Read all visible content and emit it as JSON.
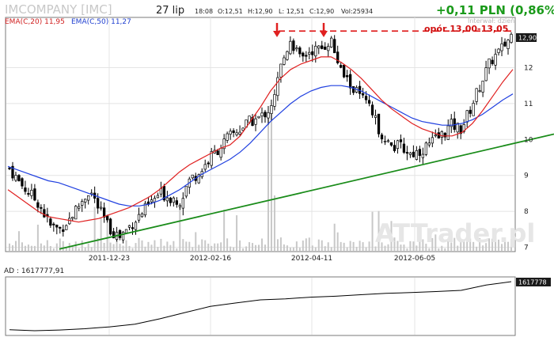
{
  "header": {
    "title": "IMCOMPANY [IMC]",
    "date": "27 lip",
    "time": "18:08",
    "open": "O:12,51",
    "high": "H:12,90",
    "low": "L: 12,51",
    "close": "C:12,90",
    "volume": "Vol:25934",
    "change": "+0,11 PLN (0,86%)",
    "interval": "Interwał: dzień"
  },
  "indicators": {
    "ema20": "EMA(C,20) 11,95",
    "ema50": "EMA(C,50) 11,27"
  },
  "resistance": {
    "label": "opór 13,00-13,05",
    "value": 13.02
  },
  "watermark": "ATTrader.pl",
  "colors": {
    "ema20": "#e02020",
    "ema50": "#2040e0",
    "trend": "#1a8c1a",
    "resistance": "#e02020",
    "candle": "#000000",
    "volume": "#c8c8c8",
    "change": "#1a9a1a"
  },
  "chart_data": {
    "type": "line",
    "x_labels": [
      "2011-12-23",
      "2012-02-16",
      "2012-04-11",
      "2012-06-05"
    ],
    "y_ticks": [
      7,
      8,
      9,
      10,
      11,
      12
    ],
    "ylim": [
      6.9,
      13.4
    ],
    "last_price": "12,90",
    "ad_label": "AD : 1617777,91",
    "ad_last": "1617778",
    "series": [
      {
        "name": "EMA(C,20)",
        "values": [
          8.6,
          8.4,
          8.2,
          8.0,
          7.85,
          7.8,
          7.75,
          7.7,
          7.75,
          7.8,
          7.9,
          8.0,
          8.1,
          8.25,
          8.4,
          8.6,
          8.85,
          9.1,
          9.3,
          9.45,
          9.6,
          9.75,
          9.85,
          10.1,
          10.5,
          10.9,
          11.35,
          11.7,
          11.95,
          12.1,
          12.2,
          12.3,
          12.3,
          12.15,
          11.95,
          11.7,
          11.4,
          11.1,
          10.85,
          10.65,
          10.45,
          10.3,
          10.2,
          10.1,
          10.1,
          10.2,
          10.45,
          10.8,
          11.2,
          11.6,
          11.95
        ]
      },
      {
        "name": "EMA(C,50)",
        "values": [
          9.25,
          9.15,
          9.05,
          8.95,
          8.85,
          8.8,
          8.7,
          8.6,
          8.5,
          8.4,
          8.3,
          8.2,
          8.15,
          8.15,
          8.2,
          8.3,
          8.45,
          8.6,
          8.8,
          9.0,
          9.15,
          9.3,
          9.45,
          9.65,
          9.9,
          10.2,
          10.5,
          10.75,
          11.0,
          11.2,
          11.35,
          11.45,
          11.5,
          11.5,
          11.45,
          11.35,
          11.2,
          11.05,
          10.9,
          10.75,
          10.6,
          10.5,
          10.45,
          10.4,
          10.4,
          10.45,
          10.55,
          10.7,
          10.9,
          11.1,
          11.27
        ]
      },
      {
        "name": "trend",
        "values": [
          6.95,
          10.15
        ]
      },
      {
        "name": "close",
        "values": [
          9.2,
          8.8,
          8.5,
          8.2,
          7.6,
          7.5,
          7.8,
          8.2,
          8.6,
          8.0,
          7.5,
          7.3,
          7.6,
          7.9,
          8.2,
          8.5,
          8.4,
          8.3,
          8.9,
          9.1,
          9.5,
          9.8,
          10.1,
          10.3,
          10.5,
          10.6,
          10.9,
          12.0,
          12.8,
          12.2,
          12.5,
          12.5,
          12.8,
          11.9,
          11.5,
          11.2,
          10.8,
          10.2,
          9.8,
          9.8,
          9.6,
          9.7,
          9.9,
          10.1,
          10.4,
          10.3,
          10.9,
          11.6,
          12.2,
          12.5,
          12.9
        ]
      }
    ],
    "ad": [
      1598000,
      1597600,
      1597900,
      1598400,
      1599200,
      1600300,
      1602500,
      1605100,
      1607600,
      1609000,
      1610300,
      1610700,
      1611400,
      1611800,
      1612400,
      1613000,
      1613300,
      1613700,
      1614200,
      1616400,
      1617778
    ]
  }
}
